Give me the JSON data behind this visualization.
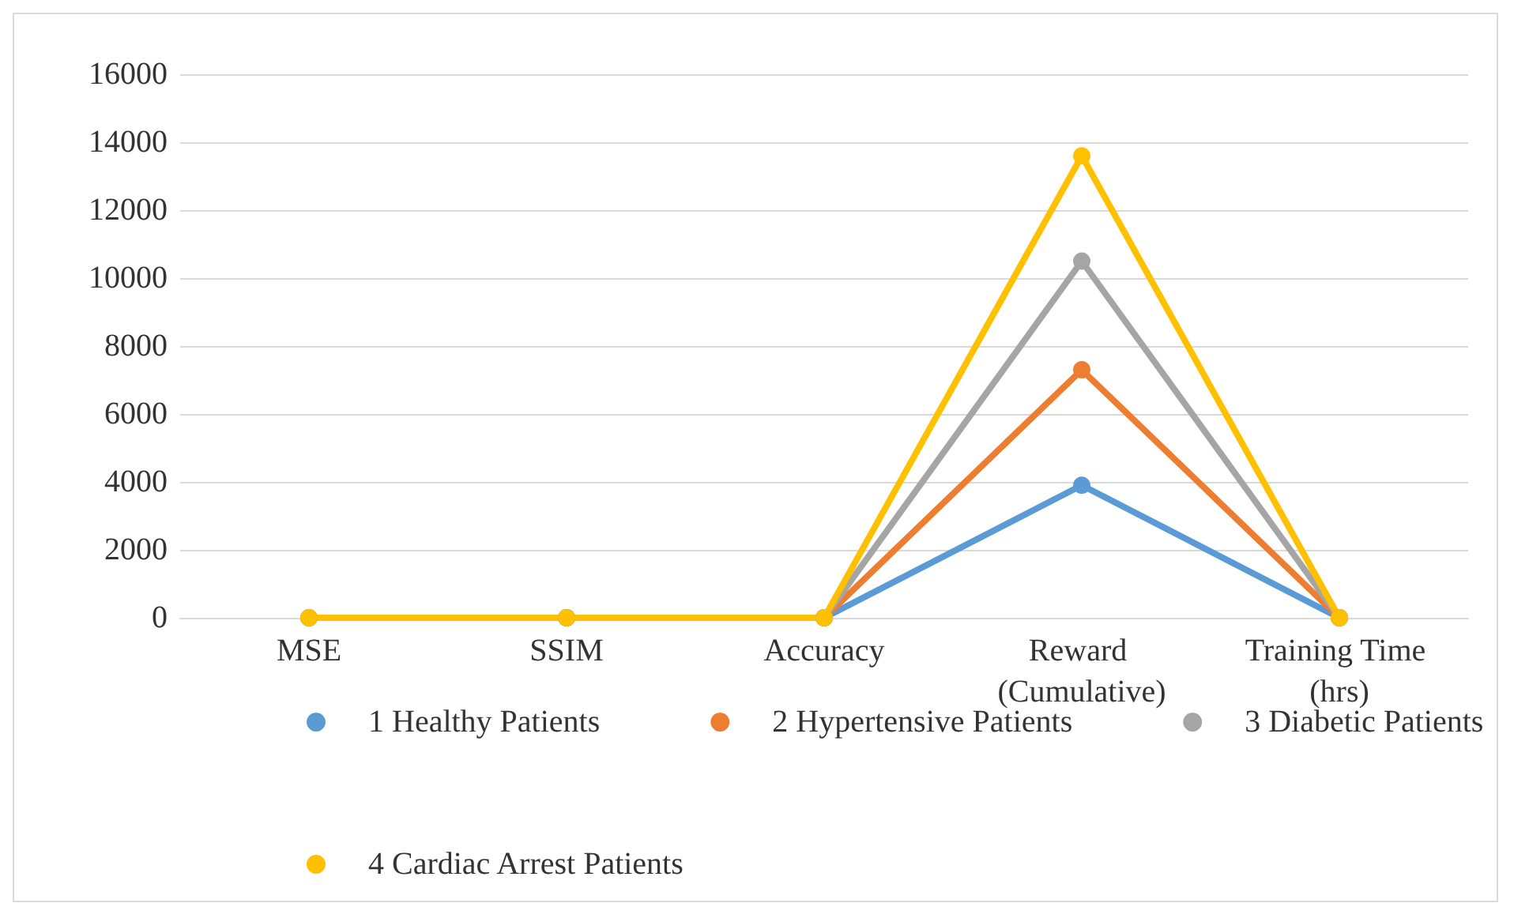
{
  "chart_data": {
    "type": "line",
    "categories": [
      "MSE",
      "SSIM",
      "Accuracy",
      "Reward (Cumulative)",
      "Training Time (hrs)"
    ],
    "series": [
      {
        "name": "1 Healthy Patients",
        "color": "#5b9bd5",
        "values": [
          0,
          0,
          0,
          3900,
          0
        ]
      },
      {
        "name": "2 Hypertensive Patients",
        "color": "#ed7d31",
        "values": [
          0,
          0,
          0,
          7300,
          0
        ]
      },
      {
        "name": "3 Diabetic Patients",
        "color": "#a5a5a5",
        "values": [
          0,
          0,
          0,
          10500,
          0
        ]
      },
      {
        "name": "4 Cardiac Arrest Patients",
        "color": "#ffc000",
        "values": [
          0,
          0,
          0,
          13600,
          0
        ]
      }
    ],
    "ylim": [
      0,
      16000
    ],
    "yticks": [
      0,
      2000,
      4000,
      6000,
      8000,
      10000,
      12000,
      14000,
      16000
    ],
    "grid": "y",
    "legend": "bottom",
    "marker": "circle",
    "line_style": "solid"
  }
}
